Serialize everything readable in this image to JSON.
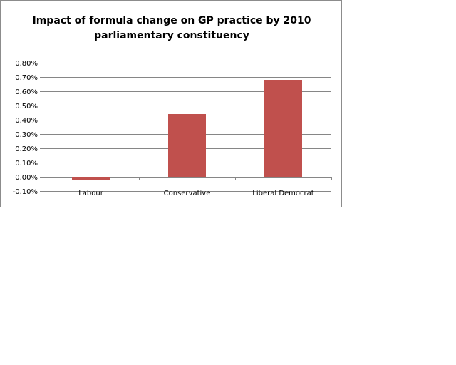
{
  "chart_data": {
    "type": "bar",
    "title_lines": [
      "Impact of formula change on GP practice by 2010",
      "parliamentary constituency"
    ],
    "categories": [
      "Labour",
      "Conservative",
      "Liberal Democrat"
    ],
    "values": [
      -0.0002,
      0.0044,
      0.0068
    ],
    "ylim": [
      -0.001,
      0.008
    ],
    "yticks": [
      {
        "value": 0.008,
        "label": "0.80%"
      },
      {
        "value": 0.007,
        "label": "0.70%"
      },
      {
        "value": 0.006,
        "label": "0.60%"
      },
      {
        "value": 0.005,
        "label": "0.50%"
      },
      {
        "value": 0.004,
        "label": "0.40%"
      },
      {
        "value": 0.003,
        "label": "0.30%"
      },
      {
        "value": 0.002,
        "label": "0.20%"
      },
      {
        "value": 0.001,
        "label": "0.10%"
      },
      {
        "value": 0.0,
        "label": "0.00%"
      },
      {
        "value": -0.001,
        "label": "-0.10%"
      }
    ],
    "bar_color": "#c0504d",
    "gridline_color": "#868686",
    "grid": true,
    "legend": "none"
  }
}
